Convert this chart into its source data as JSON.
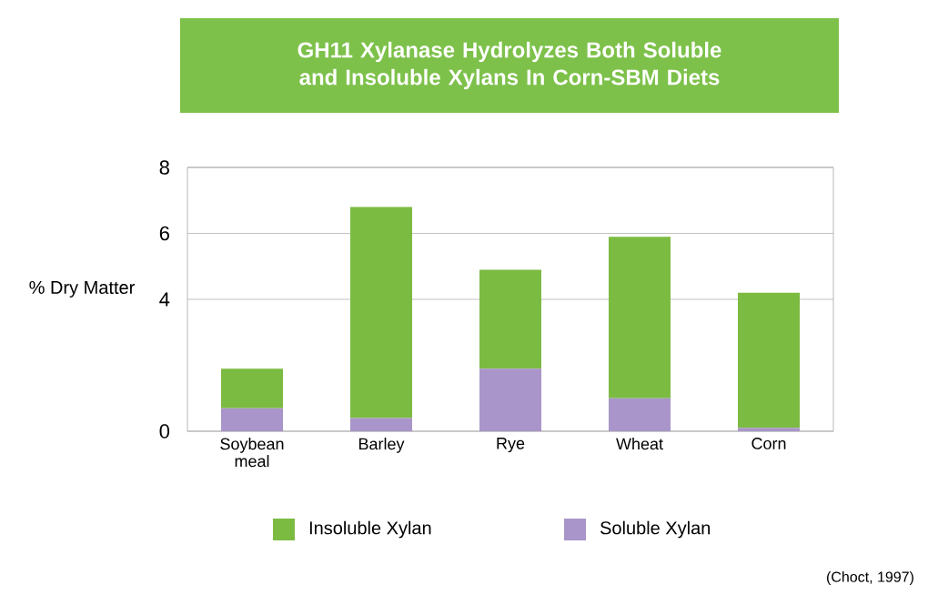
{
  "chart_data": {
    "type": "bar",
    "stacked": true,
    "title": "GH11 Xylanase Hydrolyzes Both Soluble and Insoluble Xylans In Corn-SBM Diets",
    "ylabel": "% Dry Matter",
    "categories": [
      "Soybean meal",
      "Barley",
      "Rye",
      "Wheat",
      "Corn"
    ],
    "series": [
      {
        "name": "Soluble Xylan",
        "color": "#a995c9",
        "values": [
          0.7,
          0.4,
          1.9,
          1.0,
          0.1
        ]
      },
      {
        "name": "Insoluble Xylan",
        "color": "#7cbb42",
        "values": [
          1.2,
          6.4,
          3.0,
          4.9,
          4.1
        ]
      }
    ],
    "ylim": [
      0,
      8
    ],
    "yticks": [
      0,
      4,
      6,
      8
    ],
    "grid": "y",
    "legend": "bottom",
    "annotations": [
      "(Choct, 1997)"
    ]
  }
}
